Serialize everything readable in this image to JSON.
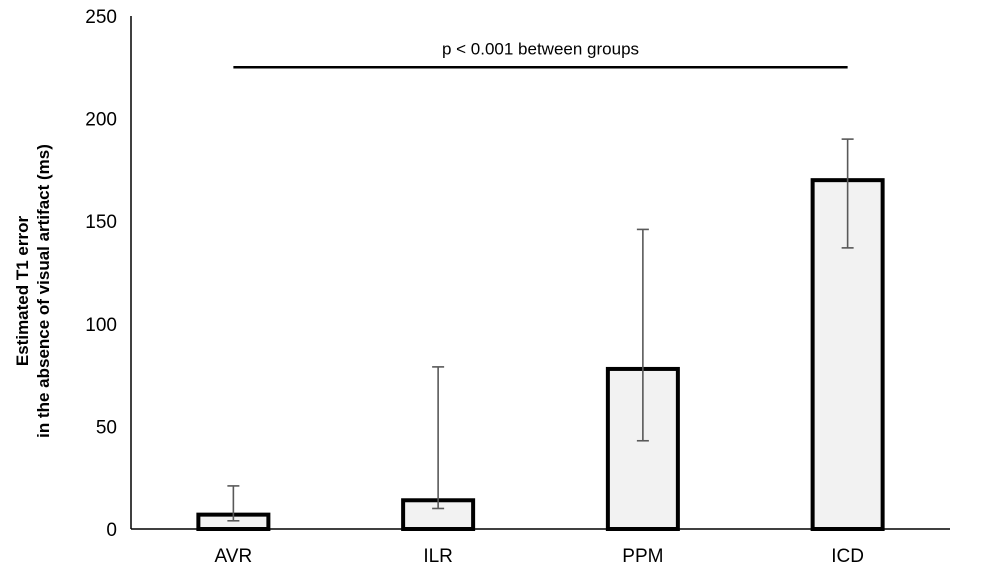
{
  "chart_data": {
    "type": "bar",
    "categories": [
      "AVR",
      "ILR",
      "PPM",
      "ICD"
    ],
    "values": [
      7,
      14,
      78,
      170
    ],
    "error_low": [
      4,
      10,
      43,
      137
    ],
    "error_high": [
      21,
      79,
      146,
      190
    ],
    "title": "",
    "xlabel": "",
    "ylabel": [
      "Estimated T1 error",
      "in the absence of visual artifact (ms)"
    ],
    "ylim": [
      0,
      250
    ],
    "yticks": [
      "0",
      "50",
      "100",
      "150",
      "200",
      "250"
    ],
    "ytick_values": [
      0,
      50,
      100,
      150,
      200,
      250
    ],
    "annotation": {
      "text": "p < 0.001 between groups",
      "y_value": 225
    },
    "grid": false,
    "legend": "none",
    "colors": {
      "bar_fill": "#f2f2f2",
      "bar_stroke": "#000000",
      "error_bar": "#595959",
      "axis": "#000000"
    }
  }
}
